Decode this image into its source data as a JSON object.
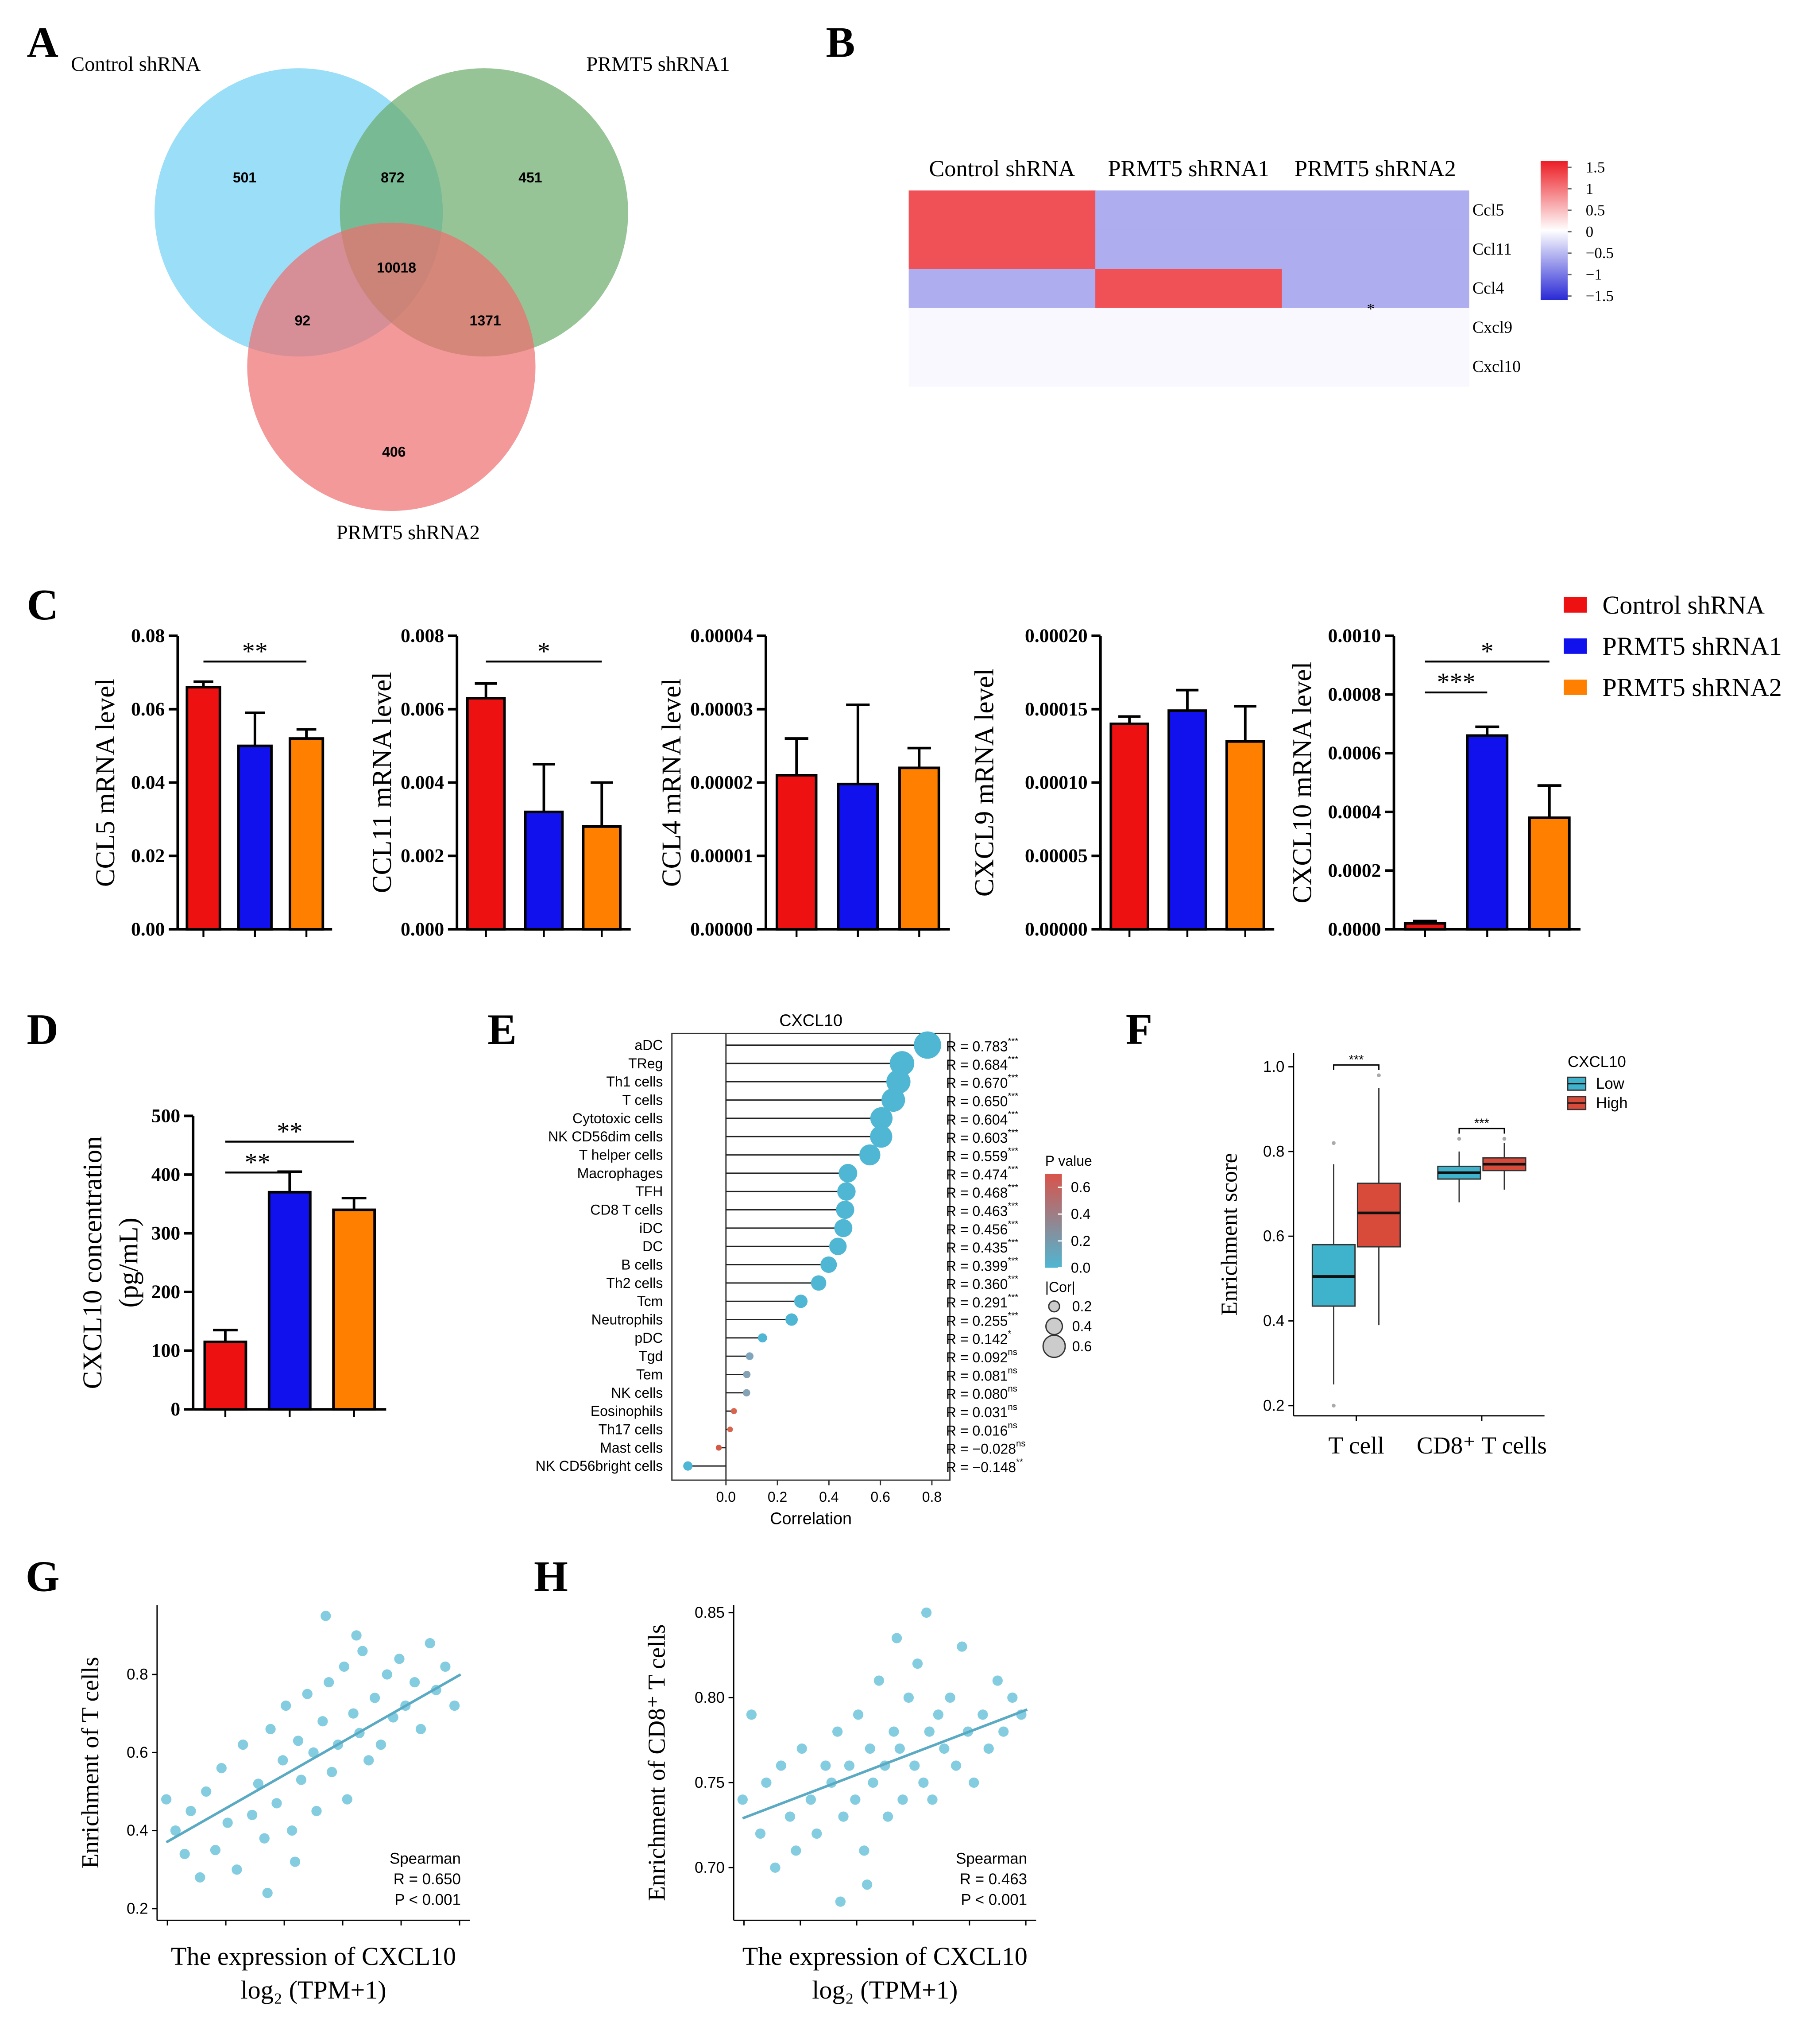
{
  "chart_data": [
    {
      "panel": "A",
      "type": "venn",
      "sets": [
        "Control shRNA",
        "PRMT5 shRNA1",
        "PRMT5 shRNA2"
      ],
      "colors": [
        "#6fd0f4",
        "#6aab6a",
        "#f06e6e"
      ],
      "values": [
        501,
        872,
        451,
        10018,
        92,
        1371,
        406
      ]
    },
    {
      "panel": "B",
      "type": "heatmap",
      "columns": [
        "Control shRNA",
        "PRMT5 shRNA1",
        "PRMT5 shRNA2"
      ],
      "rows": [
        "Ccl5",
        "Ccl11",
        "Ccl4",
        "Cxcl9",
        "Cxcl10"
      ],
      "values": [
        [
          1.15,
          -0.58,
          -0.58
        ],
        [
          1.15,
          -0.58,
          -0.58
        ],
        [
          -0.58,
          1.15,
          -0.58
        ],
        [
          -0.05,
          -0.05,
          -0.05
        ],
        [
          -0.05,
          -0.05,
          -0.05
        ]
      ],
      "zlim": [
        -1.5,
        1.5
      ],
      "zticks": [
        1.5,
        1,
        0.5,
        0,
        {
          "value": -0.5,
          "label": "−0.5"
        },
        {
          "value": -1,
          "label": "−1"
        },
        {
          "value": -1.5,
          "label": "−1.5"
        }
      ],
      "colors": [
        "#2a2ad6",
        "#ffffff",
        "#ec1c24"
      ],
      "annotation": "*"
    },
    {
      "panel": "C",
      "type": "bar-panel",
      "series_names": [
        "Control shRNA",
        "PRMT5 shRNA1",
        "PRMT5 shRNA2"
      ],
      "colors": [
        "#ee1111",
        "#1111ee",
        "#ff8000"
      ],
      "charts": [
        {
          "ylabel": "CCL5 mRNA level",
          "values": [
            0.066,
            0.05,
            0.052
          ],
          "errors": [
            0.0015,
            0.009,
            0.0025
          ],
          "ylim": [
            0,
            0.08
          ],
          "yticks": [
            {
              "value": 0,
              "label": "0.00"
            },
            0.02,
            0.04,
            0.06,
            0.08
          ],
          "brackets": [
            {
              "between": [
                0,
                2
              ],
              "label": "**"
            }
          ]
        },
        {
          "ylabel": "CCL11 mRNA level",
          "values": [
            0.0063,
            0.0032,
            0.0028
          ],
          "errors": [
            0.0004,
            0.0013,
            0.0012
          ],
          "ylim": [
            0,
            0.008
          ],
          "yticks": [
            {
              "value": 0,
              "label": "0.000"
            },
            0.002,
            0.004,
            0.006,
            0.008
          ],
          "brackets": [
            {
              "between": [
                0,
                2
              ],
              "label": "*"
            }
          ]
        },
        {
          "ylabel": "CCL4 mRNA level",
          "values": [
            2.1e-05,
            1.98e-05,
            2.2e-05
          ],
          "errors": [
            5e-06,
            1.08e-05,
            2.7e-06
          ],
          "ylim": [
            0,
            4e-05
          ],
          "yticks": [
            {
              "value": 0,
              "label": "0.00000"
            },
            1e-05,
            2e-05,
            3e-05,
            4e-05
          ],
          "brackets": []
        },
        {
          "ylabel": "CXCL9 mRNA level",
          "values": [
            0.00014,
            0.000149,
            0.000128
          ],
          "errors": [
            5e-06,
            1.4e-05,
            2.4e-05
          ],
          "ylim": [
            0,
            0.0002
          ],
          "yticks": [
            {
              "value": 0,
              "label": "0.00000"
            },
            5e-05,
            {
              "value": 0.0001,
              "label": "0.00010"
            },
            0.00015,
            {
              "value": 0.0002,
              "label": "0.00020"
            }
          ],
          "brackets": []
        },
        {
          "ylabel": "CXCL10 mRNA level",
          "values": [
            2e-05,
            0.00066,
            0.00038
          ],
          "errors": [
            8e-06,
            3e-05,
            0.00011
          ],
          "ylim": [
            0,
            0.001
          ],
          "yticks": [
            {
              "value": 0,
              "label": "0.0000"
            },
            0.0002,
            0.0004,
            0.0006,
            0.0008,
            {
              "value": 0.001,
              "label": "0.0010"
            }
          ],
          "brackets": [
            {
              "between": [
                0,
                1
              ],
              "label": "***"
            },
            {
              "between": [
                0,
                2
              ],
              "label": "*"
            }
          ]
        }
      ]
    },
    {
      "panel": "D",
      "type": "bar-panel",
      "colors": [
        "#ee1111",
        "#1111ee",
        "#ff8000"
      ],
      "charts": [
        {
          "ylabel": [
            "CXCL10 concentration",
            "(pg/mL)"
          ],
          "values": [
            115,
            370,
            340
          ],
          "errors": [
            20,
            35,
            20
          ],
          "ylim": [
            0,
            500
          ],
          "yticks": [
            0,
            100,
            200,
            300,
            400,
            500
          ],
          "brackets": [
            {
              "between": [
                0,
                1
              ],
              "label": "**"
            },
            {
              "between": [
                0,
                2
              ],
              "label": "**"
            }
          ]
        }
      ]
    },
    {
      "panel": "E",
      "type": "lollipop",
      "title": "CXCL10",
      "xlabel": "Correlation",
      "categories": [
        "aDC",
        "TReg",
        "Th1 cells",
        "T cells",
        "Cytotoxic cells",
        "NK CD56dim cells",
        "T helper cells",
        "Macrophages",
        "TFH",
        "CD8 T cells",
        "iDC",
        "DC",
        "B cells",
        "Th2 cells",
        "Tcm",
        "Neutrophils",
        "pDC",
        "Tgd",
        "Tem",
        "NK cells",
        "Eosinophils",
        "Th17 cells",
        "Mast cells",
        "NK CD56bright cells"
      ],
      "values": [
        0.783,
        0.684,
        0.67,
        0.65,
        0.604,
        0.603,
        0.559,
        0.474,
        0.468,
        0.463,
        0.456,
        0.435,
        0.399,
        0.36,
        0.291,
        0.255,
        0.142,
        0.092,
        0.081,
        0.08,
        0.031,
        0.016,
        -0.028,
        -0.148
      ],
      "value_labels": [
        "R = 0.783",
        "R = 0.684",
        "R = 0.670",
        "R = 0.650",
        "R = 0.604",
        "R = 0.603",
        "R = 0.559",
        "R = 0.474",
        "R = 0.468",
        "R = 0.463",
        "R = 0.456",
        "R = 0.435",
        "R = 0.399",
        "R = 0.360",
        "R = 0.291",
        "R = 0.255",
        "R = 0.142",
        "R = 0.092",
        "R = 0.081",
        "R = 0.080",
        "R = 0.031",
        "R = 0.016",
        "R = −0.028",
        "R = −0.148"
      ],
      "significance": [
        "***",
        "***",
        "***",
        "***",
        "***",
        "***",
        "***",
        "***",
        "***",
        "***",
        "***",
        "***",
        "***",
        "***",
        "***",
        "***",
        "*",
        "ns",
        "ns",
        "ns",
        "ns",
        "ns",
        "ns",
        "**"
      ],
      "point_colors": [
        "#4fb6d3",
        "#4fb6d3",
        "#4fb6d3",
        "#4fb6d3",
        "#4fb6d3",
        "#4fb6d3",
        "#4fb6d3",
        "#4fb6d3",
        "#4fb6d3",
        "#4fb6d3",
        "#4fb6d3",
        "#4fb6d3",
        "#4fb6d3",
        "#4fb6d3",
        "#4fb6d3",
        "#4fb6d3",
        "#4fb6d3",
        "#7fa6bd",
        "#86a3b6",
        "#86a3b6",
        "#d9644e",
        "#d9644e",
        "#d45a48",
        "#4fb6d3"
      ],
      "xlim": [
        -0.21,
        0.87
      ],
      "xticks": [
        {
          "value": 0,
          "label": "0.0"
        },
        0.2,
        0.4,
        0.6,
        0.8
      ],
      "colorbar_title": "P value",
      "colorbar_lim": [
        0,
        0.7
      ],
      "colorbar_ticks": [
        0.6,
        0.4,
        0.2,
        {
          "value": 0,
          "label": "0.0"
        }
      ],
      "colorbar_colors": [
        "#4fb6d3",
        "#d9534a"
      ],
      "size_title": "|Cor|",
      "size_ticks": [
        0.2,
        0.4,
        0.6
      ]
    },
    {
      "panel": "F",
      "type": "box",
      "ylabel": "Enrichment score",
      "categories": [
        "T cell",
        "CD8⁺ T cells"
      ],
      "legend_title": "CXCL10",
      "series": [
        {
          "name": "Low",
          "color": "#3fb2cc",
          "values": [
            {
              "min": 0.25,
              "q1": 0.435,
              "median": 0.505,
              "q3": 0.58,
              "max": 0.77,
              "outliers": [
                0.82,
                0.2
              ]
            },
            {
              "min": 0.68,
              "q1": 0.735,
              "median": 0.75,
              "q3": 0.765,
              "max": 0.8,
              "outliers": [
                0.83
              ]
            }
          ]
        },
        {
          "name": "High",
          "color": "#d84a3a",
          "values": [
            {
              "min": 0.39,
              "q1": 0.575,
              "median": 0.655,
              "q3": 0.725,
              "max": 0.95,
              "outliers": [
                0.98
              ]
            },
            {
              "min": 0.71,
              "q1": 0.755,
              "median": 0.77,
              "q3": 0.785,
              "max": 0.82,
              "outliers": [
                0.83
              ]
            }
          ]
        }
      ],
      "significance": [
        "***",
        "***"
      ],
      "ylim": [
        0.176,
        1.033
      ],
      "yticks": [
        0.2,
        0.4,
        0.6,
        0.8,
        {
          "value": 1,
          "label": "1.0"
        }
      ]
    },
    {
      "panel": "G",
      "type": "scatter",
      "ylabel": "Enrichment of T cells",
      "xlabel": [
        "The expression of CXCL10",
        "log₂ (TPM+1)"
      ],
      "color": "#5bbcd6",
      "x": [
        0.2,
        0.5,
        0.8,
        1.0,
        1.3,
        1.5,
        1.8,
        2.0,
        2.2,
        2.5,
        2.7,
        3.0,
        3.2,
        3.4,
        3.6,
        3.8,
        4.0,
        4.1,
        4.3,
        4.5,
        4.6,
        4.8,
        5.0,
        5.1,
        5.3,
        5.5,
        5.6,
        5.8,
        6.0,
        6.1,
        6.3,
        6.5,
        6.6,
        6.8,
        7.0,
        7.2,
        7.4,
        7.6,
        7.8,
        8.0,
        8.3,
        8.5,
        8.8,
        9.0,
        9.3,
        9.6,
        5.4,
        4.4,
        6.4,
        3.5
      ],
      "y": [
        0.48,
        0.4,
        0.34,
        0.45,
        0.28,
        0.5,
        0.35,
        0.56,
        0.42,
        0.3,
        0.62,
        0.44,
        0.52,
        0.38,
        0.66,
        0.47,
        0.58,
        0.72,
        0.4,
        0.63,
        0.53,
        0.75,
        0.6,
        0.45,
        0.68,
        0.78,
        0.55,
        0.62,
        0.82,
        0.48,
        0.7,
        0.65,
        0.86,
        0.58,
        0.74,
        0.62,
        0.8,
        0.69,
        0.84,
        0.72,
        0.78,
        0.66,
        0.88,
        0.76,
        0.82,
        0.72,
        0.95,
        0.32,
        0.9,
        0.24
      ],
      "fit_x": [
        0.2,
        9.8
      ],
      "fit_y": [
        0.37,
        0.8
      ],
      "annotation": [
        "Spearman",
        "R = 0.650",
        "P < 0.001"
      ],
      "xlim": [
        -0.1,
        10.1
      ],
      "ylim": [
        0.17,
        0.978
      ],
      "yticks": [
        0.2,
        0.4,
        0.6,
        0.8
      ]
    },
    {
      "panel": "H",
      "type": "scatter",
      "ylabel": "Enrichment of CD8⁺ T cells",
      "xlabel": [
        "The expression of CXCL10",
        "log₂ (TPM+1)"
      ],
      "color": "#5bbcd6",
      "x": [
        0.2,
        0.5,
        0.8,
        1.0,
        1.3,
        1.5,
        1.8,
        2.0,
        2.2,
        2.5,
        2.7,
        3.0,
        3.2,
        3.4,
        3.6,
        3.8,
        4.0,
        4.1,
        4.3,
        4.5,
        4.6,
        4.8,
        5.0,
        5.1,
        5.3,
        5.5,
        5.6,
        5.8,
        6.0,
        6.1,
        6.3,
        6.5,
        6.6,
        6.8,
        7.0,
        7.2,
        7.4,
        7.6,
        7.8,
        8.0,
        8.3,
        8.5,
        8.8,
        9.0,
        9.3,
        9.6,
        5.4,
        4.4,
        6.4,
        3.5
      ],
      "y": [
        0.74,
        0.79,
        0.72,
        0.75,
        0.7,
        0.76,
        0.73,
        0.71,
        0.77,
        0.74,
        0.72,
        0.76,
        0.75,
        0.78,
        0.73,
        0.76,
        0.74,
        0.79,
        0.71,
        0.77,
        0.75,
        0.81,
        0.76,
        0.73,
        0.78,
        0.77,
        0.74,
        0.8,
        0.76,
        0.82,
        0.75,
        0.78,
        0.74,
        0.79,
        0.77,
        0.8,
        0.76,
        0.83,
        0.78,
        0.75,
        0.79,
        0.77,
        0.81,
        0.78,
        0.8,
        0.79,
        0.835,
        0.69,
        0.85,
        0.68
      ],
      "fit_x": [
        0.2,
        9.8
      ],
      "fit_y": [
        0.729,
        0.793
      ],
      "annotation": [
        "Spearman",
        "R = 0.463",
        "P < 0.001"
      ],
      "xlim": [
        -0.1,
        10.1
      ],
      "ylim": [
        0.669,
        0.8545
      ],
      "yticks": [
        {
          "value": 0.7,
          "label": "0.70"
        },
        0.75,
        {
          "value": 0.8,
          "label": "0.80"
        },
        0.85
      ]
    }
  ]
}
